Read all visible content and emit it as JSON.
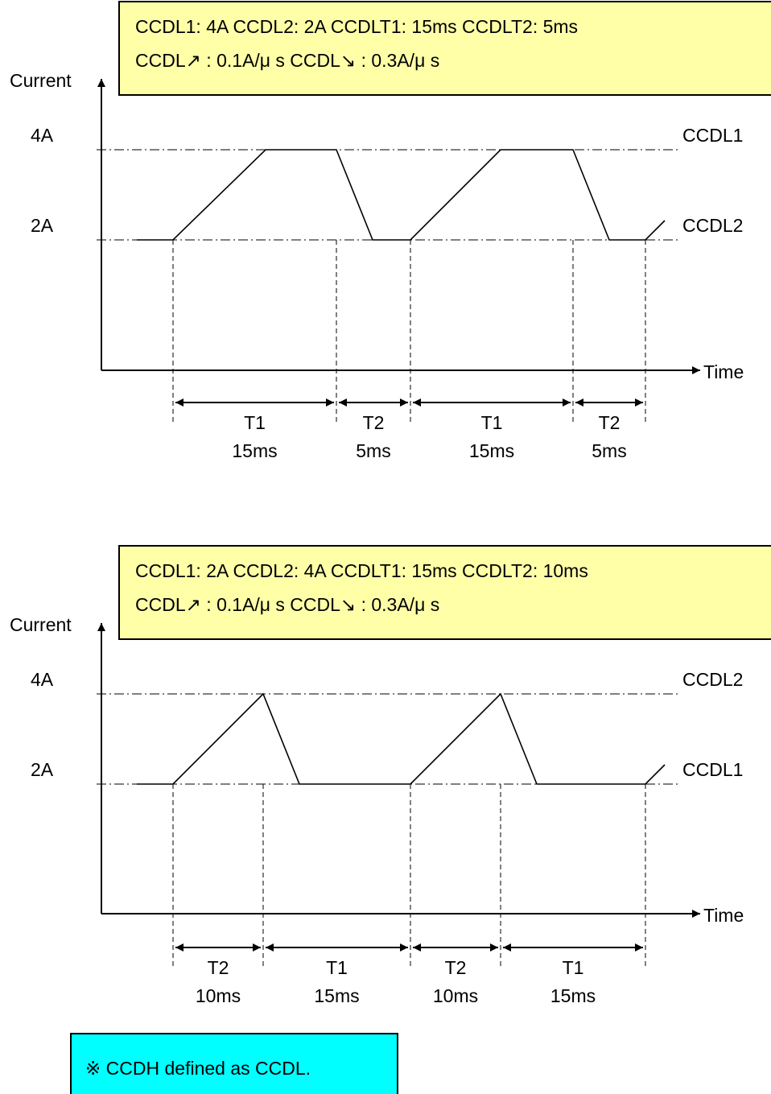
{
  "colors": {
    "param_box": "#ffffa8",
    "note_box": "#00ffff",
    "line": "#000000"
  },
  "axis_labels": {
    "y": "Current",
    "x": "Time"
  },
  "diagrams": [
    {
      "params_line1": "CCDL1: 4A    CCDL2: 2A    CCDLT1: 15ms    CCDLT2: 5ms",
      "params_line2": "CCDL↗ : 0.1A/μ  s    CCDL↘ : 0.3A/μ  s",
      "level_high": "4A",
      "level_low": "2A",
      "right_label_high": "CCDL1",
      "right_label_low": "CCDL2",
      "waveform": [
        [
          "low",
          170
        ],
        [
          "low",
          215
        ],
        [
          "high",
          330
        ],
        [
          "high",
          418
        ],
        [
          "low",
          463
        ],
        [
          "low",
          510
        ],
        [
          "high",
          622
        ],
        [
          "high",
          712
        ],
        [
          "low",
          757
        ],
        [
          "low",
          802
        ],
        [
          "rise",
          826
        ]
      ],
      "period_marks": [
        215,
        418,
        510,
        712,
        802
      ],
      "periods": [
        {
          "name": "T1",
          "duration": "15ms"
        },
        {
          "name": "T2",
          "duration": "5ms"
        },
        {
          "name": "T1",
          "duration": "15ms"
        },
        {
          "name": "T2",
          "duration": "5ms"
        }
      ]
    },
    {
      "params_line1": "CCDL1: 2A    CCDL2: 4A    CCDLT1: 15ms    CCDLT2: 10ms",
      "params_line2": "CCDL↗ : 0.1A/μ  s    CCDL↘ : 0.3A/μ  s",
      "level_high": "4A",
      "level_low": "2A",
      "right_label_high": "CCDL2",
      "right_label_low": "CCDL1",
      "waveform": [
        [
          "low",
          170
        ],
        [
          "low",
          215
        ],
        [
          "high",
          327
        ],
        [
          "low",
          372
        ],
        [
          "low",
          510
        ],
        [
          "high",
          622
        ],
        [
          "low",
          667
        ],
        [
          "low",
          802
        ],
        [
          "rise",
          826
        ]
      ],
      "period_marks": [
        215,
        327,
        510,
        622,
        802
      ],
      "periods": [
        {
          "name": "T2",
          "duration": "10ms"
        },
        {
          "name": "T1",
          "duration": "15ms"
        },
        {
          "name": "T2",
          "duration": "10ms"
        },
        {
          "name": "T1",
          "duration": "15ms"
        }
      ]
    }
  ],
  "note": "※  CCDH defined as CCDL."
}
